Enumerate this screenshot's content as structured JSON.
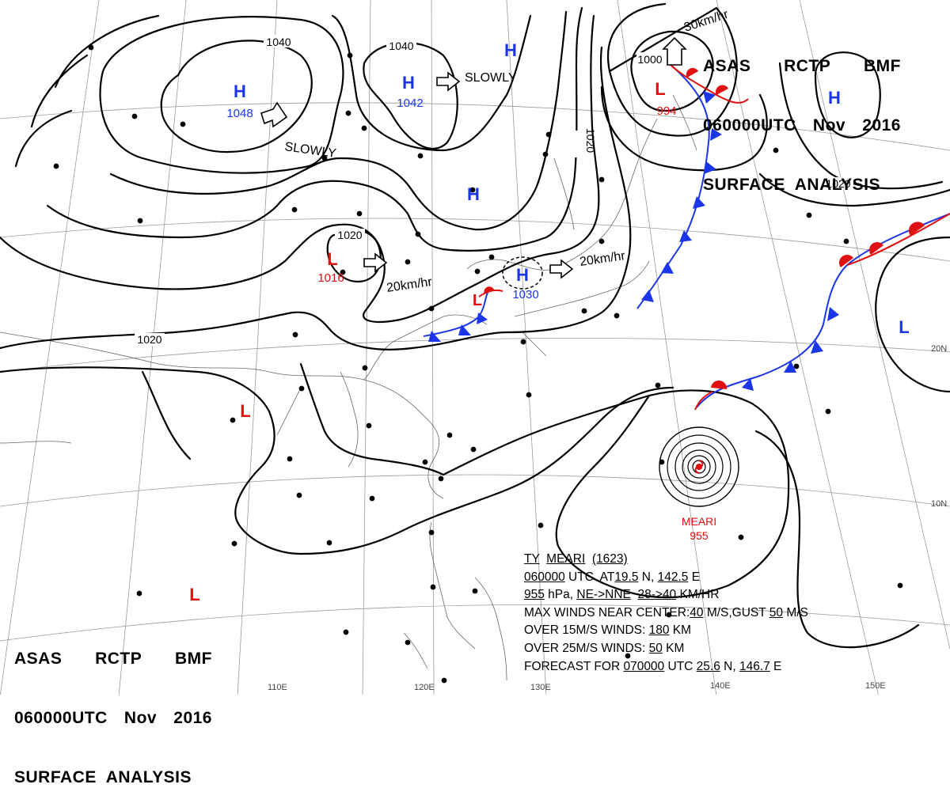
{
  "header": {
    "line1": [
      "ASAS",
      "RCTP",
      "BMF"
    ],
    "line2": [
      "060000UTC",
      "Nov",
      "2016"
    ],
    "line3": "SURFACE  ANALYSIS"
  },
  "colors": {
    "isobar": "#000000",
    "cold_front": "#1a36e8",
    "warm_front": "#e01010",
    "high": "#1a36e8",
    "low": "#e01010",
    "grid": "#9a9a9a",
    "coast": "#666666"
  },
  "pressure_centers": [
    {
      "type": "H",
      "value": "1048"
    },
    {
      "type": "H",
      "value": "1042"
    },
    {
      "type": "H",
      "value": ""
    },
    {
      "type": "H",
      "value": ""
    },
    {
      "type": "H",
      "value": "1030"
    },
    {
      "type": "H",
      "value": ""
    },
    {
      "type": "L",
      "value": "994"
    },
    {
      "type": "L",
      "value": "1016"
    },
    {
      "type": "L",
      "value": ""
    },
    {
      "type": "L",
      "value": ""
    },
    {
      "type": "L",
      "value": ""
    },
    {
      "type": "L",
      "value": ""
    }
  ],
  "isobar_labels": [
    "1040",
    "1040",
    "1020",
    "1000",
    "1020",
    "1020",
    "1020"
  ],
  "motion_labels": [
    "SLOWLY",
    "SLOWLY",
    "20km/hr",
    "20km/hr",
    "30km/hr"
  ],
  "typhoon": {
    "name": "MEARI",
    "pressure": "955",
    "title_prefix": "TY",
    "title_name": "MEARI",
    "title_number": "(1623)",
    "time": "060000",
    "time_suffix": " UTC  AT",
    "lat": "19.5",
    "lat_suffix": " N, ",
    "lon": "142.5",
    "lon_suffix": " E",
    "pressure_text": "955",
    "pressure_unit": " hPa, ",
    "direction": "NE->NNE",
    "speed": "28->40",
    "speed_unit": " KM/HR",
    "max_winds_prefix": "MAX WINDS NEAR CENTER:",
    "max_winds": "40",
    "max_winds_mid": " M/S,GUST ",
    "gust": "50",
    "gust_unit": " M/S",
    "r15_prefix": "OVER 15M/S WINDS: ",
    "r15": "180",
    "r15_unit": " KM",
    "r25_prefix": "OVER 25M/S WINDS: ",
    "r25": "50",
    "r25_unit": " KM",
    "forecast_prefix": "FORECAST FOR ",
    "forecast_time": "070000",
    "forecast_mid": " UTC ",
    "forecast_lat": "25.6",
    "forecast_lat_suffix": " N, ",
    "forecast_lon": "146.7",
    "forecast_lon_suffix": " E"
  },
  "grid_labels": {
    "lon": [
      "110E",
      "120E",
      "130E",
      "140E",
      "150E"
    ],
    "lat": [
      "20N",
      "10N"
    ]
  }
}
